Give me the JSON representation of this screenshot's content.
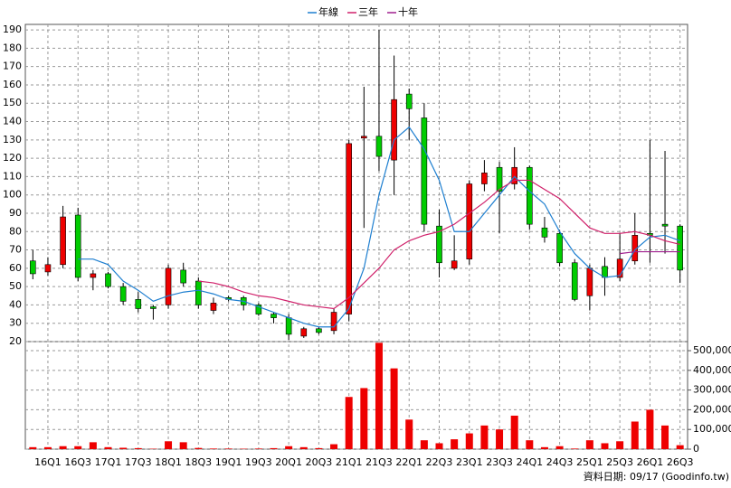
{
  "chart_data": {
    "type": "candlestick",
    "categories": [
      null,
      "16Q1",
      null,
      "16Q3",
      null,
      "17Q1",
      null,
      "17Q3",
      null,
      "18Q1",
      null,
      "18Q3",
      null,
      "19Q1",
      null,
      "19Q3",
      null,
      "20Q1",
      null,
      "20Q3",
      null,
      "21Q1",
      null,
      "21Q3",
      null,
      "22Q1",
      null,
      "22Q3",
      null,
      "23Q1",
      null,
      "23Q3",
      null,
      "24Q1",
      null,
      "24Q3",
      null,
      "25Q1",
      null,
      "25Q3",
      null,
      "26Q1",
      null,
      "26Q3"
    ],
    "open": [
      64,
      58,
      62,
      89,
      55,
      57,
      50,
      43,
      39,
      40,
      59,
      53,
      37,
      44,
      44,
      40,
      35,
      33,
      23,
      27,
      26,
      35,
      131,
      132,
      119,
      155,
      142,
      83,
      60,
      65,
      106,
      115,
      106,
      115,
      82,
      79,
      63,
      45,
      61,
      55,
      64,
      79,
      84,
      83
    ],
    "high": [
      70,
      66,
      94,
      93,
      59,
      58,
      52,
      47,
      40,
      62,
      63,
      55,
      44,
      45,
      45,
      41,
      36,
      35,
      28,
      28,
      38,
      130,
      159,
      190,
      176,
      158,
      150,
      92,
      78,
      108,
      119,
      118,
      126,
      116,
      88,
      81,
      65,
      62,
      66,
      79,
      90,
      130,
      124,
      84
    ],
    "low": [
      54,
      56,
      60,
      53,
      48,
      49,
      40,
      36,
      32,
      38,
      50,
      38,
      35,
      42,
      37,
      34,
      30,
      21,
      22,
      24,
      24,
      31,
      82,
      113,
      100,
      130,
      80,
      55,
      59,
      62,
      102,
      79,
      103,
      81,
      74,
      61,
      42,
      37,
      45,
      53,
      62,
      63,
      68,
      52
    ],
    "close": [
      57,
      62,
      88,
      55,
      57,
      50,
      42,
      38,
      38,
      60,
      52,
      40,
      41,
      43,
      40,
      35,
      33,
      24,
      27,
      25,
      36,
      128,
      132,
      121,
      152,
      147,
      84,
      63,
      64,
      106,
      112,
      102,
      115,
      84,
      77,
      63,
      43,
      60,
      55,
      65,
      78,
      78,
      83,
      59
    ],
    "volume": [
      10000,
      10000,
      15000,
      15000,
      35000,
      10000,
      7000,
      5000,
      2000,
      40000,
      35000,
      6000,
      3000,
      3000,
      2000,
      3000,
      5000,
      15000,
      10000,
      5000,
      25000,
      265000,
      310000,
      540000,
      410000,
      150000,
      45000,
      30000,
      50000,
      80000,
      120000,
      100000,
      170000,
      45000,
      10000,
      15000,
      3000,
      45000,
      30000,
      40000,
      140000,
      200000,
      120000,
      20000
    ],
    "up_color": "#ee0000",
    "down_color": "#00cc00",
    "volume_color": "#ee0000",
    "lines": [
      {
        "name": "年線",
        "color": "#1e7fd0",
        "values": [
          null,
          null,
          null,
          65,
          65,
          62,
          53,
          48,
          42,
          45,
          47,
          48,
          46,
          43,
          42,
          39,
          36,
          33,
          30,
          28,
          28,
          38,
          60,
          100,
          130,
          137,
          125,
          108,
          80,
          80,
          90,
          100,
          110,
          102,
          95,
          80,
          68,
          60,
          55,
          56,
          70,
          77,
          78,
          75
        ]
      },
      {
        "name": "三年",
        "color": "#d0206a",
        "values": [
          null,
          null,
          null,
          null,
          null,
          null,
          null,
          null,
          null,
          null,
          null,
          53,
          52,
          50,
          47,
          45,
          44,
          42,
          40,
          39,
          38,
          44,
          52,
          60,
          70,
          75,
          78,
          80,
          84,
          90,
          96,
          103,
          108,
          108,
          103,
          98,
          90,
          82,
          79,
          79,
          80,
          78,
          75,
          73
        ]
      },
      {
        "name": "十年",
        "color": "#a0208f",
        "values": [
          null,
          null,
          null,
          null,
          null,
          null,
          null,
          null,
          null,
          null,
          null,
          null,
          null,
          null,
          null,
          null,
          null,
          null,
          null,
          null,
          null,
          null,
          null,
          null,
          null,
          null,
          null,
          null,
          null,
          null,
          null,
          null,
          null,
          null,
          null,
          null,
          null,
          null,
          null,
          68,
          69,
          69,
          69,
          69
        ]
      }
    ],
    "ylim": [
      20,
      193
    ],
    "yticks": [
      20,
      30,
      40,
      50,
      60,
      70,
      80,
      90,
      100,
      110,
      120,
      130,
      140,
      150,
      160,
      170,
      180,
      190
    ],
    "y2lim": [
      0,
      546000
    ],
    "y2ticks": [
      0,
      {
        "value": 100000,
        "label": "100,000"
      },
      {
        "value": 200000,
        "label": "200,000"
      },
      {
        "value": 300000,
        "label": "300,000"
      },
      {
        "value": 400000,
        "label": "400,000"
      },
      {
        "value": 500000,
        "label": "500,000"
      }
    ],
    "grid": true,
    "footer": "資料日期: 09/17  (Goodinfo.tw)"
  }
}
